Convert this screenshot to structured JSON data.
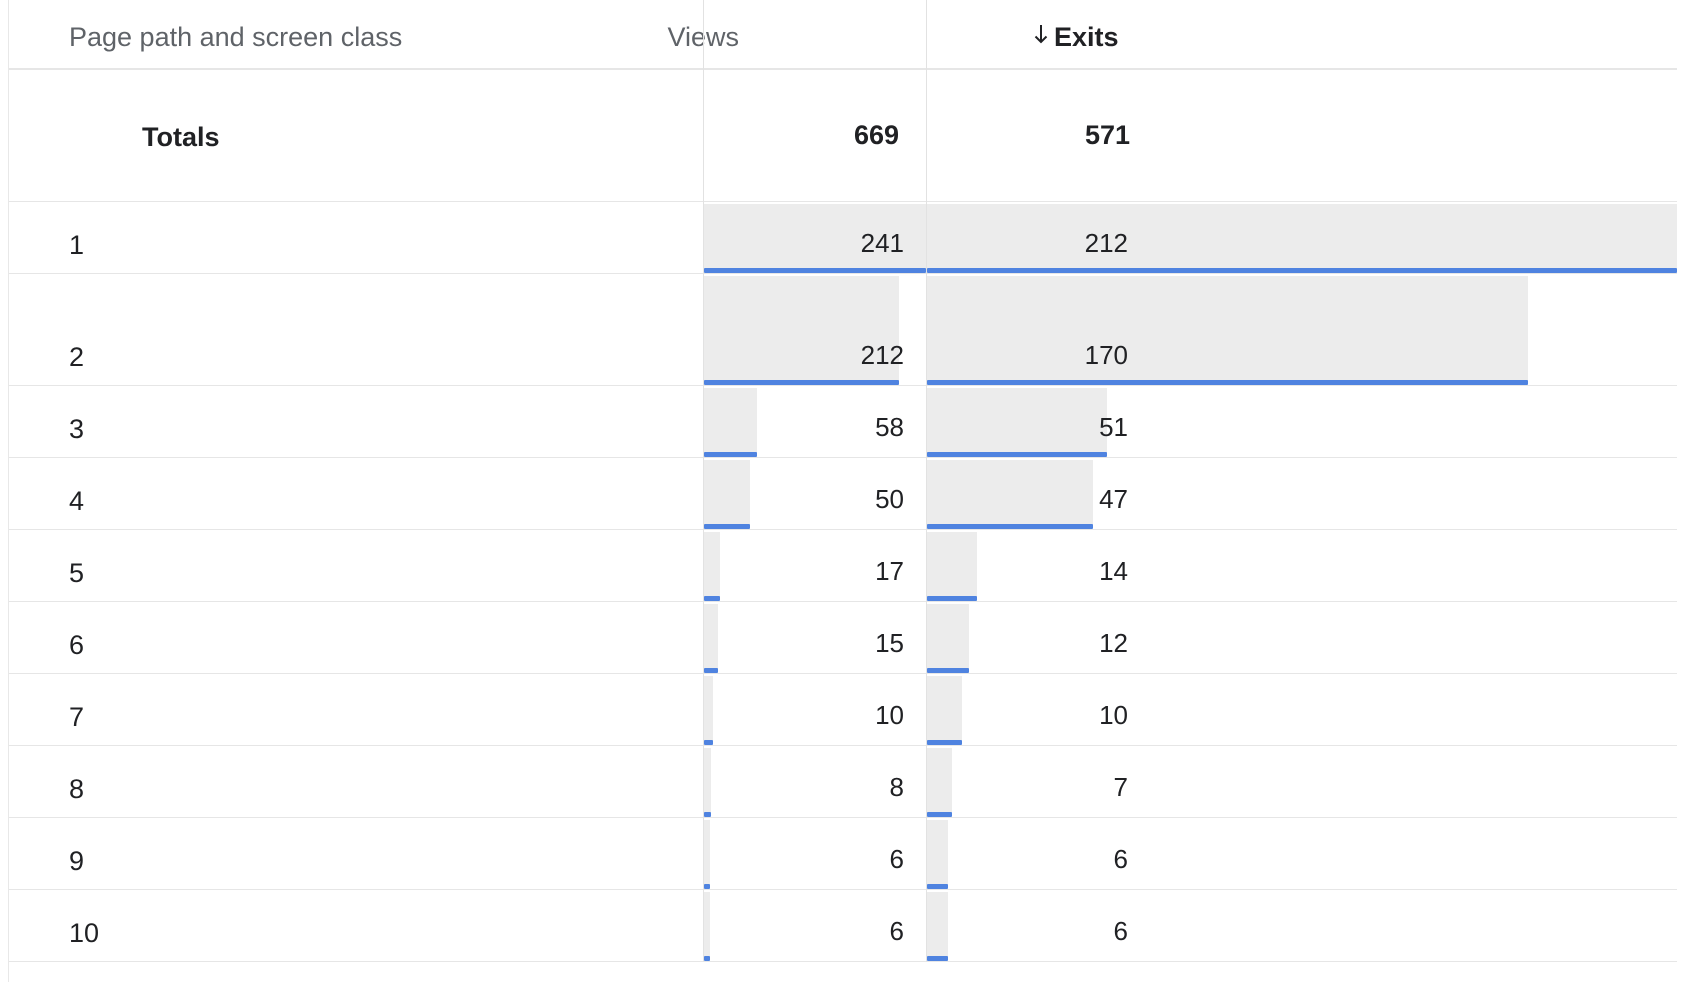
{
  "header": {
    "dimension_label": "Page path and screen class",
    "views_label": "Views",
    "exits_label": "Exits",
    "sort_icon": "arrow-down-icon"
  },
  "totals": {
    "label": "Totals",
    "views": "669",
    "exits": "571"
  },
  "rows": [
    {
      "rank": "1",
      "views": "241",
      "exits": "212",
      "views_value": 241,
      "exits_value": 212
    },
    {
      "rank": "2",
      "views": "212",
      "exits": "170",
      "views_value": 212,
      "exits_value": 170
    },
    {
      "rank": "3",
      "views": "58",
      "exits": "51",
      "views_value": 58,
      "exits_value": 51
    },
    {
      "rank": "4",
      "views": "50",
      "exits": "47",
      "views_value": 50,
      "exits_value": 47
    },
    {
      "rank": "5",
      "views": "17",
      "exits": "14",
      "views_value": 17,
      "exits_value": 14
    },
    {
      "rank": "6",
      "views": "15",
      "exits": "12",
      "views_value": 15,
      "exits_value": 12
    },
    {
      "rank": "7",
      "views": "10",
      "exits": "10",
      "views_value": 10,
      "exits_value": 10
    },
    {
      "rank": "8",
      "views": "8",
      "exits": "7",
      "views_value": 8,
      "exits_value": 7
    },
    {
      "rank": "9",
      "views": "6",
      "exits": "6",
      "views_value": 6,
      "exits_value": 6
    },
    {
      "rank": "10",
      "views": "6",
      "exits": "6",
      "views_value": 6,
      "exits_value": 6
    }
  ],
  "colors": {
    "bar_fill": "#ececec",
    "bar_accent": "#4f83e0"
  }
}
